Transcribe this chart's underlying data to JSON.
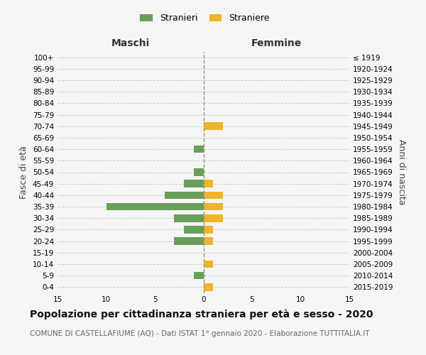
{
  "age_groups": [
    "0-4",
    "5-9",
    "10-14",
    "15-19",
    "20-24",
    "25-29",
    "30-34",
    "35-39",
    "40-44",
    "45-49",
    "50-54",
    "55-59",
    "60-64",
    "65-69",
    "70-74",
    "75-79",
    "80-84",
    "85-89",
    "90-94",
    "95-99",
    "100+"
  ],
  "birth_years": [
    "2015-2019",
    "2010-2014",
    "2005-2009",
    "2000-2004",
    "1995-1999",
    "1990-1994",
    "1985-1989",
    "1980-1984",
    "1975-1979",
    "1970-1974",
    "1965-1969",
    "1960-1964",
    "1955-1959",
    "1950-1954",
    "1945-1949",
    "1940-1944",
    "1935-1939",
    "1930-1934",
    "1925-1929",
    "1920-1924",
    "≤ 1919"
  ],
  "maschi": [
    0,
    1,
    0,
    0,
    3,
    2,
    3,
    10,
    4,
    2,
    1,
    0,
    1,
    0,
    0,
    0,
    0,
    0,
    0,
    0,
    0
  ],
  "femmine": [
    1,
    0,
    1,
    0,
    1,
    1,
    2,
    2,
    2,
    1,
    0,
    0,
    0,
    0,
    2,
    0,
    0,
    0,
    0,
    0,
    0
  ],
  "maschi_color": "#6a9e5b",
  "femmine_color": "#f0b429",
  "xlim": 15,
  "title": "Popolazione per cittadinanza straniera per età e sesso - 2020",
  "subtitle": "COMUNE DI CASTELLAFIUME (AQ) - Dati ISTAT 1° gennaio 2020 - Elaborazione TUTTITALIA.IT",
  "ylabel_left": "Fasce di età",
  "ylabel_right": "Anni di nascita",
  "xlabel_maschi": "Maschi",
  "xlabel_femmine": "Femmine",
  "legend_stranieri": "Stranieri",
  "legend_straniere": "Straniere",
  "background_color": "#f5f5f5",
  "grid_color": "#cccccc",
  "center_line_color": "#999966",
  "tick_fontsize": 7.5,
  "xlabel_fontsize": 10,
  "axis_label_fontsize": 9,
  "legend_fontsize": 9,
  "title_fontsize": 10,
  "subtitle_fontsize": 7.5
}
